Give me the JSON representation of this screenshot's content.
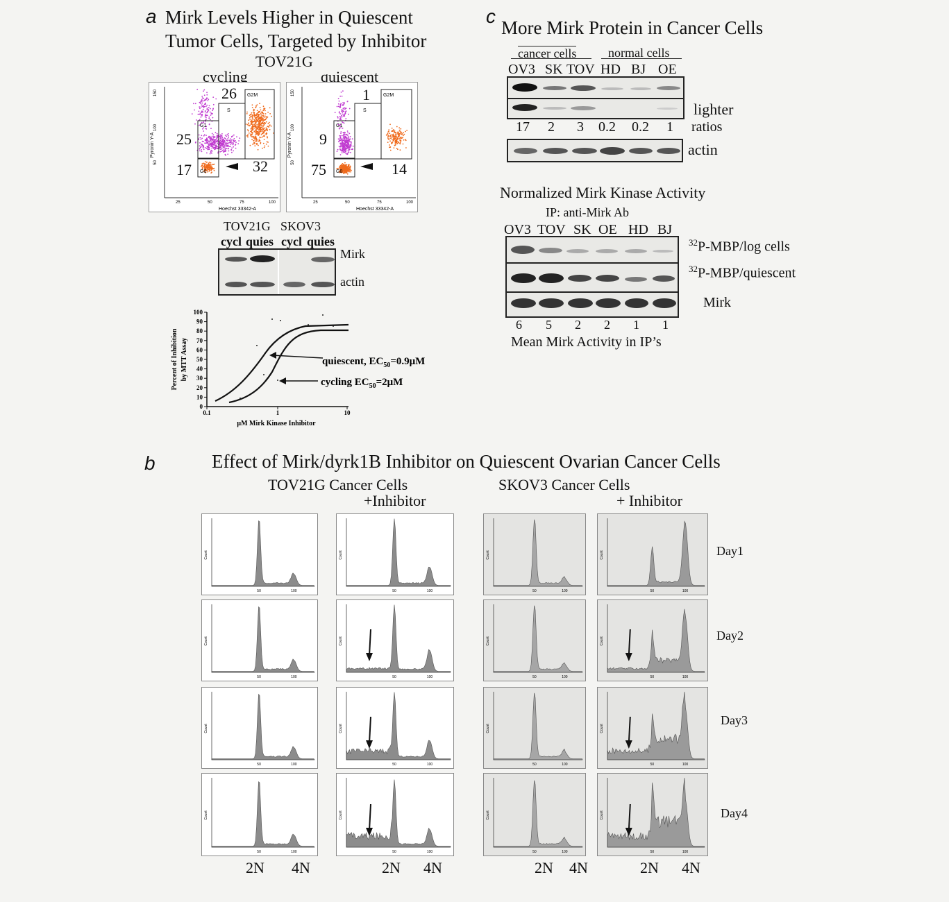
{
  "panel_a": {
    "letter": "a",
    "title_line1": "Mirk Levels Higher in Quiescent",
    "title_line2": "Tumor Cells, Targeted by Inhibitor",
    "cell_line": "TOV21G",
    "cycling_label": "cycling",
    "quiescent_label": "quiescent",
    "cycling_plot": {
      "s": "26",
      "g1": "25",
      "g0": "17",
      "g2m": "32",
      "gate_g1": "G1",
      "gate_s": "S",
      "gate_g2m": "G2M",
      "gate_g0": "G0"
    },
    "quiescent_plot": {
      "s": "1",
      "g1": "9",
      "g0": "75",
      "g2m": "14",
      "gate_g1": "G1",
      "gate_s": "S",
      "gate_g2m": "G2M",
      "gate_g0": "G0"
    },
    "y_axis": "Pyronin Y-A",
    "x_axis": "Hoechst 33342-A",
    "y_ticks": [
      "150",
      "100",
      "50"
    ],
    "x_ticks": [
      "25",
      "50",
      "75",
      "100"
    ],
    "blot": {
      "group1": "TOV21G",
      "group2": "SKOV3",
      "lanes": [
        "cycl",
        "quies",
        "cycl",
        "quies"
      ],
      "row1": "Mirk",
      "row2": "actin"
    },
    "mtt": {
      "ylabel_line1": "Percent of Inhibition",
      "ylabel_line2": "by MTT Assay",
      "xlabel": "μM Mirk Kinase Inhibitor",
      "y_ticks": [
        "100",
        "90",
        "80",
        "70",
        "60",
        "50",
        "40",
        "30",
        "20",
        "10",
        "0"
      ],
      "x_ticks": [
        "0.1",
        "1",
        "10"
      ],
      "quiescent_label": "quiescent, EC",
      "quiescent_sub": "50",
      "quiescent_value": "=0.9μM",
      "cycling_label": "cycling EC",
      "cycling_sub": "50",
      "cycling_value": "=2μM"
    }
  },
  "panel_b": {
    "letter": "b",
    "title": "Effect of Mirk/dyrk1B Inhibitor on Quiescent Ovarian Cancer Cells",
    "tov_label": "TOV21G Cancer Cells",
    "tov_inhib": "+Inhibitor",
    "skov_label": "SKOV3 Cancer Cells",
    "skov_inhib": "+ Inhibitor",
    "days": [
      "Day1",
      "Day2",
      "Day3",
      "Day4"
    ],
    "x_2n": "2N",
    "x_4n": "4N",
    "hist_ylabel": "Count",
    "hist_xticks": [
      "50",
      "100"
    ]
  },
  "panel_c": {
    "letter": "c",
    "title": "More Mirk Protein in Cancer Cells",
    "cancer_cells": "cancer cells",
    "normal_cells": "normal cells",
    "lanes": [
      "OV3",
      "SK",
      "TOV",
      "HD",
      "BJ",
      "OE"
    ],
    "lighter": "lighter",
    "ratios_label": "ratios",
    "ratios": [
      "17",
      "2",
      "3",
      "0.2",
      "0.2",
      "1"
    ],
    "actin": "actin",
    "kinase_title": "Normalized Mirk Kinase Activity",
    "ip_label": "IP: anti-Mirk Ab",
    "kinase_lanes": [
      "OV3",
      "TOV",
      "SK",
      "OE",
      "HD",
      "BJ"
    ],
    "row_log_sup": "32",
    "row_log": "P-MBP/log cells",
    "row_quies_sup": "32",
    "row_quies": "P-MBP/quiescent",
    "row_mirk": "Mirk",
    "activity": [
      "6",
      "5",
      "2",
      "2",
      "1",
      "1"
    ],
    "activity_label": "Mean Mirk Activity in IP’s"
  }
}
